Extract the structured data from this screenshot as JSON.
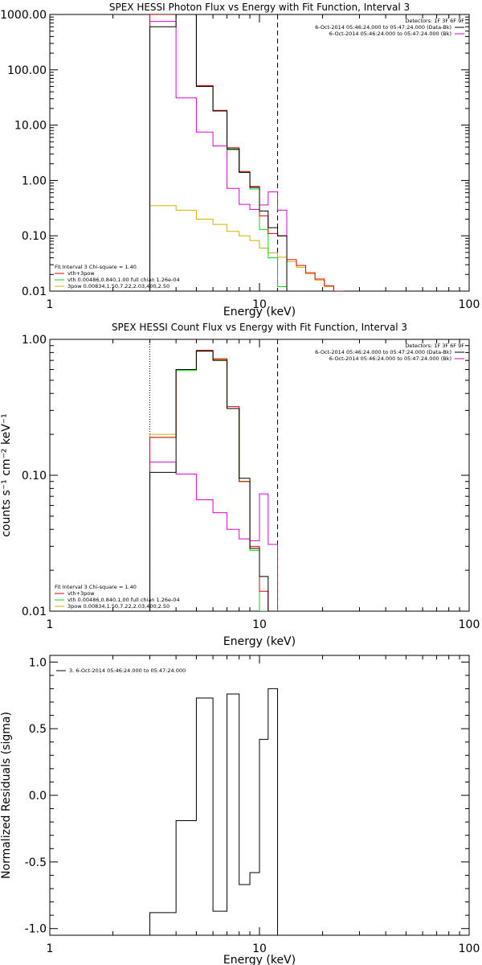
{
  "figure": {
    "background": "#ffffff",
    "colors": {
      "axis": "#000000",
      "data": "#000000",
      "vth_3pow": "#e00000",
      "vth": "#00dd00",
      "3pow": "#d4b000",
      "bk": "#dd00dd"
    }
  },
  "chart_data": [
    {
      "type": "line",
      "title": "SPEX HESSI Photon Flux vs Energy with Fit Function, Interval 3",
      "xlabel": "Energy (keV)",
      "ylabel": "",
      "xscale": "log",
      "yscale": "log",
      "xlim": [
        1,
        100
      ],
      "ylim": [
        0.01,
        1000
      ],
      "xticks": [
        {
          "v": 1,
          "label": "1"
        },
        {
          "v": 10,
          "label": "10"
        },
        {
          "v": 100,
          "label": "100"
        }
      ],
      "yticks": [
        {
          "v": 0.01,
          "label": "0.01"
        },
        {
          "v": 0.1,
          "label": "0.10"
        },
        {
          "v": 1,
          "label": "1.00"
        },
        {
          "v": 10,
          "label": "10.00"
        },
        {
          "v": 100,
          "label": "100.00"
        },
        {
          "v": 1000,
          "label": "1000.00"
        }
      ],
      "fit_range": [
        3,
        12.2
      ],
      "header": {
        "detectors": "Detectors: 1F 3F 6F 9F",
        "lines": [
          {
            "text": "6-Oct-2014 05:46:24.000 to 05:47:24.000 (Data-Bk)",
            "color": "#000000"
          },
          {
            "text": "6-Oct-2014 05:46:24.000 to 05:47:24.000 (Bk)",
            "color": "#dd00dd"
          }
        ]
      },
      "legend": {
        "position": "bottom-left",
        "header": "Fit Interval  3    Chi-square = 1.40",
        "entries": [
          {
            "label": "vth+3pow",
            "color": "#e00000"
          },
          {
            "label": "vth 0.00486,0.840,1.00   full chian 1.26e-04",
            "color": "#00dd00"
          },
          {
            "label": "3pow 0.00834,1.50,7.22,2.03,400,2.50",
            "color": "#d4b000"
          }
        ]
      },
      "bin_edges": [
        3,
        4,
        5,
        6,
        7,
        8,
        9,
        10,
        11,
        12.2,
        13.5,
        15,
        16.6,
        18.4,
        20.4,
        22.6,
        25
      ],
      "series": [
        {
          "name": "Data-Bk",
          "color": "#000000",
          "values": [
            600,
            1000,
            50,
            18,
            3.7,
            1.4,
            0.75,
            0.28,
            0.14,
            0.1
          ]
        },
        {
          "name": "vth+3pow",
          "color": "#e00000",
          "values": [
            1000,
            1000,
            52,
            18.5,
            3.9,
            1.45,
            0.78,
            0.23,
            0.11,
            0.1,
            0.037,
            0.029,
            0.0215,
            0.0165,
            0.0125,
            0.0098
          ]
        },
        {
          "name": "vth",
          "color": "#00dd00",
          "values": [
            1000,
            1000,
            50,
            18,
            3.6,
            1.4,
            0.7,
            0.13,
            0.04,
            0.012
          ]
        },
        {
          "name": "3pow",
          "color": "#d4b000",
          "values": [
            0.35,
            0.29,
            0.2,
            0.16,
            0.12,
            0.1,
            0.082,
            0.06,
            0.049,
            0.041,
            0.034,
            0.027,
            0.0205,
            0.0158,
            0.0121,
            0.0098
          ]
        },
        {
          "name": "Bk",
          "color": "#dd00dd",
          "values": [
            750,
            31,
            7.5,
            4.2,
            0.72,
            0.37,
            0.3,
            0.36,
            0.62,
            0.29
          ]
        }
      ]
    },
    {
      "type": "line",
      "title": "SPEX HESSI Count Flux vs Energy with Fit Function, Interval 3",
      "xlabel": "Energy (keV)",
      "ylabel": "counts s⁻¹ cm⁻² keV⁻¹",
      "xscale": "log",
      "yscale": "log",
      "xlim": [
        1,
        100
      ],
      "ylim": [
        0.01,
        1
      ],
      "xticks": [
        {
          "v": 1,
          "label": "1"
        },
        {
          "v": 10,
          "label": "10"
        },
        {
          "v": 100,
          "label": "100"
        }
      ],
      "yticks": [
        {
          "v": 0.01,
          "label": "0.01"
        },
        {
          "v": 0.1,
          "label": "0.10"
        },
        {
          "v": 1,
          "label": "1.00"
        }
      ],
      "fit_range": [
        3,
        12.2
      ],
      "header": {
        "detectors": "Detectors: 1F 3F 6F 9F",
        "lines": [
          {
            "text": "6-Oct-2014 05:46:24.000 to 05:47:24.000 (Data-Bk)",
            "color": "#000000"
          },
          {
            "text": "6-Oct-2014 05:46:24.000 to 05:47:24.000 (Bk)",
            "color": "#dd00dd"
          }
        ]
      },
      "legend": {
        "position": "bottom-left",
        "header": "Fit Interval  3    Chi-square = 1.40",
        "entries": [
          {
            "label": "vth+3pow",
            "color": "#e00000"
          },
          {
            "label": "vth 0.00486,0.840,1.00   full chian 1.26e-04",
            "color": "#00dd00"
          },
          {
            "label": "3pow 0.00834,1.50,7.22,2.03,400,2.50",
            "color": "#d4b000"
          }
        ]
      },
      "bin_edges": [
        3,
        4,
        5,
        6,
        7,
        8,
        9,
        10,
        11,
        12.2
      ],
      "series": [
        {
          "name": "Data-Bk",
          "color": "#000000",
          "values": [
            0.105,
            0.6,
            0.82,
            0.7,
            0.31,
            0.095,
            0.029,
            0.018,
            0.01
          ]
        },
        {
          "name": "vth+3pow",
          "color": "#e00000",
          "values": [
            0.19,
            0.6,
            0.83,
            0.72,
            0.32,
            0.09,
            0.03,
            0.014,
            0.01
          ]
        },
        {
          "name": "vth",
          "color": "#00dd00",
          "values": [
            0.19,
            0.59,
            0.82,
            0.7,
            0.31,
            0.09,
            0.028,
            0.01,
            0.01
          ]
        },
        {
          "name": "3pow",
          "color": "#d4b000",
          "values": [
            0.2,
            0.6,
            0.82,
            0.71,
            0.31,
            0.09,
            0.029,
            0.01,
            0.01
          ]
        },
        {
          "name": "Bk",
          "color": "#dd00dd",
          "values": [
            0.125,
            0.102,
            0.066,
            0.053,
            0.04,
            0.034,
            0.033,
            0.073,
            0.031
          ]
        }
      ]
    },
    {
      "type": "line",
      "title": "",
      "xlabel": "Energy (keV)",
      "ylabel": "Normalized Residuals (sigma)",
      "xscale": "log",
      "yscale": "linear",
      "xlim": [
        1,
        100
      ],
      "ylim": [
        -1.05,
        1.05
      ],
      "xticks": [
        {
          "v": 1,
          "label": "1"
        },
        {
          "v": 10,
          "label": "10"
        },
        {
          "v": 100,
          "label": "100"
        }
      ],
      "yticks": [
        {
          "v": -1,
          "label": "-1.0"
        },
        {
          "v": -0.5,
          "label": "-0.5"
        },
        {
          "v": 0,
          "label": "0.0"
        },
        {
          "v": 0.5,
          "label": "0.5"
        },
        {
          "v": 1,
          "label": "1.0"
        }
      ],
      "legend": {
        "position": "top-left",
        "entries": [
          {
            "label": "3.  6-Oct-2014 05:46:24.000 to 05:47:24.000",
            "color": "#000000"
          }
        ]
      },
      "bin_edges": [
        3,
        4,
        5,
        6,
        7,
        8,
        9,
        10,
        11,
        12.2
      ],
      "series": [
        {
          "name": "3.  6-Oct-2014 05:46:24.000 to 05:47:24.000",
          "color": "#000000",
          "values": [
            -0.88,
            -0.19,
            0.73,
            -0.87,
            0.76,
            -0.67,
            -0.58,
            0.42,
            0.8
          ]
        }
      ]
    }
  ]
}
